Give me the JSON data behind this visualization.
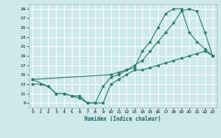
{
  "bg_color": "#cee9e9",
  "grid_color": "#ffffff",
  "line_color": "#2e7d6e",
  "xlabel": "Humidex (Indice chaleur)",
  "xlim": [
    -0.5,
    23.5
  ],
  "ylim": [
    8,
    30
  ],
  "yticks": [
    9,
    11,
    13,
    15,
    17,
    19,
    21,
    23,
    25,
    27,
    29
  ],
  "xticks": [
    0,
    1,
    2,
    3,
    4,
    5,
    6,
    7,
    8,
    9,
    10,
    11,
    12,
    13,
    14,
    15,
    16,
    17,
    18,
    19,
    20,
    21,
    22,
    23
  ],
  "line1_x": [
    0,
    1,
    2,
    3,
    4,
    5,
    6,
    7,
    8,
    9,
    10,
    11,
    12,
    13,
    14,
    15,
    16,
    17,
    18,
    19,
    20,
    21,
    22,
    23
  ],
  "line1_y": [
    13,
    13,
    12.5,
    11,
    11,
    10.5,
    10,
    9,
    9,
    9,
    13,
    14,
    15,
    16,
    16,
    16.5,
    17,
    17.5,
    18,
    18.5,
    19,
    19.5,
    20,
    19
  ],
  "line2_x": [
    0,
    2,
    3,
    4,
    5,
    6,
    7,
    8,
    9,
    10,
    11,
    12,
    13,
    14,
    15,
    16,
    17,
    18,
    19,
    20,
    21,
    22,
    23
  ],
  "line2_y": [
    14,
    12.5,
    11,
    11,
    10.5,
    10.5,
    9,
    9,
    12.5,
    14.5,
    15,
    16,
    16.5,
    20,
    22,
    25,
    28,
    29,
    29,
    24,
    22,
    20.5,
    19
  ],
  "line3_x": [
    0,
    10,
    11,
    12,
    13,
    14,
    15,
    16,
    17,
    18,
    19,
    20,
    21,
    22,
    23
  ],
  "line3_y": [
    14,
    15,
    15.5,
    16,
    17,
    18,
    20,
    22,
    24,
    26,
    28.5,
    29,
    28.5,
    24,
    19
  ]
}
